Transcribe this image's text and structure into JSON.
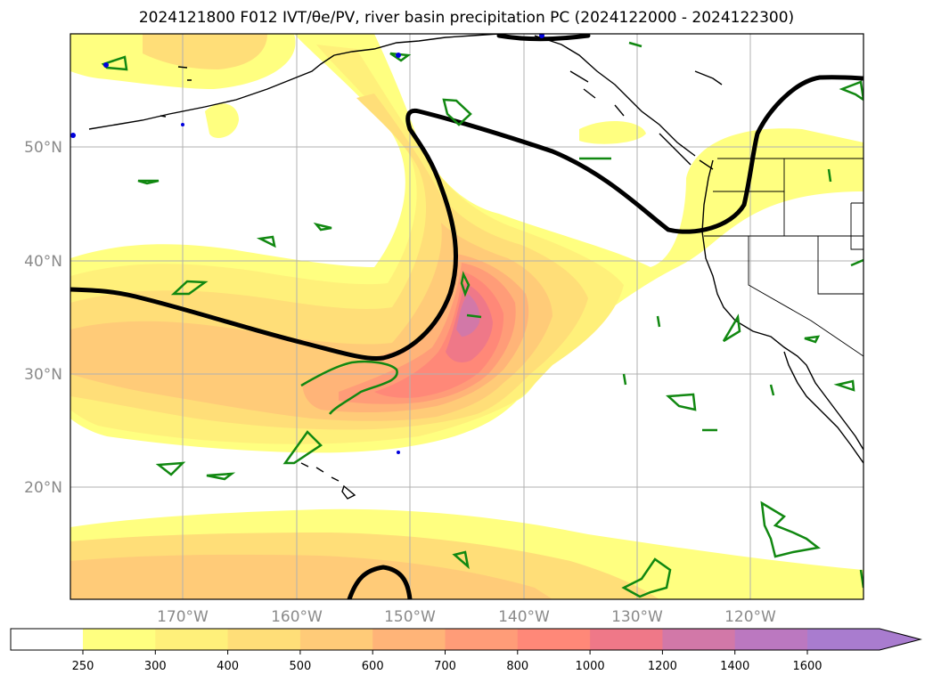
{
  "title": "2024121800 F012 IVT/θe/PV, river basin precipitation PC (2024122000 - 2024122300)",
  "map": {
    "lat_labels": [
      "50°N",
      "40°N",
      "30°N",
      "20°N"
    ],
    "lon_labels": [
      "170°W",
      "160°W",
      "150°W",
      "140°W",
      "130°W",
      "120°W"
    ],
    "layers": [
      "ivt-fill",
      "theta-e-contour",
      "pv-contour",
      "coastlines",
      "state-borders",
      "gridlines"
    ]
  },
  "colorbar": {
    "ticks": [
      "250",
      "300",
      "400",
      "500",
      "600",
      "700",
      "800",
      "1000",
      "1200",
      "1400",
      "1600"
    ],
    "colors": [
      "#ffff80",
      "#fff07a",
      "#ffde78",
      "#ffcb78",
      "#ffb478",
      "#ff9c78",
      "#ff8878",
      "#ef7888",
      "#d278a8",
      "#bb78c0",
      "#a97ccf"
    ],
    "extend": "max"
  }
}
